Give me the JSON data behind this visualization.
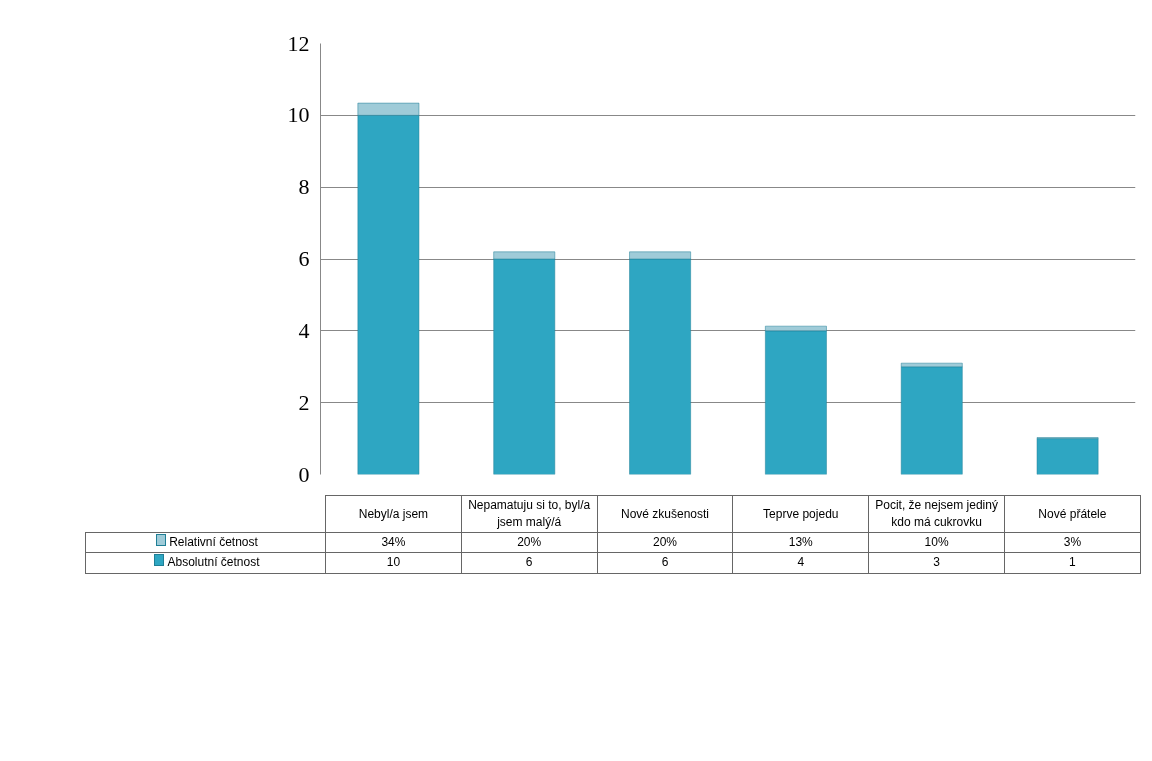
{
  "chart_data": {
    "type": "bar",
    "stacked": true,
    "categories": [
      "Nebyl/a jsem",
      "Nepamatuju si to, byl/a jsem malý/á",
      "Nové zkušenosti",
      "Teprve pojedu",
      "Pocit, že nejsem jediný kdo má cukrovku",
      "Nové přátele"
    ],
    "series": [
      {
        "name": "Absolutní četnost",
        "color": "#2ea6c2",
        "values": [
          10,
          6,
          6,
          4,
          3,
          1
        ],
        "value_labels": [
          "10",
          "6",
          "6",
          "4",
          "3",
          "1"
        ]
      },
      {
        "name": "Relativní četnost",
        "color": "#9fcbd8",
        "values": [
          0.34,
          0.2,
          0.2,
          0.13,
          0.1,
          0.03
        ],
        "value_labels": [
          "34%",
          "20%",
          "20%",
          "13%",
          "10%",
          "3%"
        ]
      }
    ],
    "ylim": [
      0,
      12
    ],
    "yticks": [
      0,
      2,
      4,
      6,
      8,
      10,
      12
    ],
    "grid": "y",
    "legend": "bottom"
  }
}
